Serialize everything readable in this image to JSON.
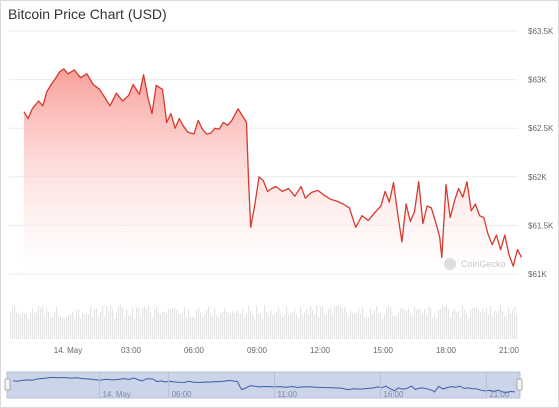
{
  "chart_data": {
    "type": "area",
    "title": "Bitcoin Price Chart (USD)",
    "xlabel": "",
    "ylabel": "",
    "ylim": [
      61000,
      63500
    ],
    "y_ticks": [
      {
        "value": 63500,
        "label": "$63.5K"
      },
      {
        "value": 63000,
        "label": "$63K"
      },
      {
        "value": 62500,
        "label": "$62.5K"
      },
      {
        "value": 62000,
        "label": "$62K"
      },
      {
        "value": 61500,
        "label": "$61.5K"
      },
      {
        "value": 61000,
        "label": "$61K"
      }
    ],
    "x_ticks": [
      {
        "hour": 0,
        "label": "14. May"
      },
      {
        "hour": 3,
        "label": "03:00"
      },
      {
        "hour": 6,
        "label": "06:00"
      },
      {
        "hour": 9,
        "label": "09:00"
      },
      {
        "hour": 12,
        "label": "12:00"
      },
      {
        "hour": 15,
        "label": "15:00"
      },
      {
        "hour": 18,
        "label": "18:00"
      },
      {
        "hour": 21,
        "label": "21:00"
      }
    ],
    "navigator_ticks": [
      {
        "hour": 0,
        "label": "14. May"
      },
      {
        "hour": 6,
        "label": "06:00"
      },
      {
        "hour": 11,
        "label": "11:00"
      },
      {
        "hour": 16,
        "label": "16:00"
      },
      {
        "hour": 21,
        "label": "21:00"
      }
    ],
    "grid": true,
    "legend": "none",
    "series": [
      {
        "values": [
          [
            -2.1,
            62670
          ],
          [
            -1.9,
            62600
          ],
          [
            -1.7,
            62700
          ],
          [
            -1.4,
            62780
          ],
          [
            -1.2,
            62730
          ],
          [
            -1.0,
            62880
          ],
          [
            -0.8,
            62950
          ],
          [
            -0.6,
            63010
          ],
          [
            -0.4,
            63080
          ],
          [
            -0.2,
            63110
          ],
          [
            0.0,
            63060
          ],
          [
            0.3,
            63100
          ],
          [
            0.6,
            63020
          ],
          [
            0.9,
            63060
          ],
          [
            1.2,
            62950
          ],
          [
            1.5,
            62900
          ],
          [
            1.8,
            62800
          ],
          [
            2.0,
            62730
          ],
          [
            2.3,
            62860
          ],
          [
            2.6,
            62780
          ],
          [
            2.9,
            62840
          ],
          [
            3.1,
            62950
          ],
          [
            3.4,
            62850
          ],
          [
            3.6,
            63050
          ],
          [
            3.8,
            62820
          ],
          [
            4.0,
            62650
          ],
          [
            4.2,
            62940
          ],
          [
            4.5,
            62900
          ],
          [
            4.7,
            62560
          ],
          [
            4.9,
            62650
          ],
          [
            5.1,
            62500
          ],
          [
            5.3,
            62600
          ],
          [
            5.5,
            62520
          ],
          [
            5.7,
            62460
          ],
          [
            6.0,
            62440
          ],
          [
            6.2,
            62580
          ],
          [
            6.4,
            62490
          ],
          [
            6.6,
            62440
          ],
          [
            6.8,
            62450
          ],
          [
            7.0,
            62500
          ],
          [
            7.2,
            62490
          ],
          [
            7.4,
            62560
          ],
          [
            7.6,
            62530
          ],
          [
            7.8,
            62580
          ],
          [
            8.1,
            62700
          ],
          [
            8.3,
            62630
          ],
          [
            8.5,
            62560
          ],
          [
            8.6,
            61950
          ],
          [
            8.7,
            61480
          ],
          [
            8.9,
            61720
          ],
          [
            9.1,
            62000
          ],
          [
            9.3,
            61960
          ],
          [
            9.5,
            61850
          ],
          [
            9.7,
            61880
          ],
          [
            9.9,
            61900
          ],
          [
            10.2,
            61850
          ],
          [
            10.5,
            61880
          ],
          [
            10.8,
            61800
          ],
          [
            11.1,
            61900
          ],
          [
            11.3,
            61780
          ],
          [
            11.6,
            61840
          ],
          [
            11.9,
            61860
          ],
          [
            12.2,
            61810
          ],
          [
            12.5,
            61770
          ],
          [
            12.8,
            61750
          ],
          [
            13.1,
            61720
          ],
          [
            13.4,
            61680
          ],
          [
            13.7,
            61480
          ],
          [
            14.0,
            61600
          ],
          [
            14.3,
            61550
          ],
          [
            14.6,
            61630
          ],
          [
            14.9,
            61700
          ],
          [
            15.1,
            61850
          ],
          [
            15.3,
            61740
          ],
          [
            15.5,
            61940
          ],
          [
            15.7,
            61620
          ],
          [
            15.9,
            61330
          ],
          [
            16.1,
            61720
          ],
          [
            16.3,
            61540
          ],
          [
            16.5,
            61640
          ],
          [
            16.7,
            61950
          ],
          [
            16.9,
            61520
          ],
          [
            17.1,
            61700
          ],
          [
            17.3,
            61680
          ],
          [
            17.5,
            61540
          ],
          [
            17.7,
            61380
          ],
          [
            17.8,
            61170
          ],
          [
            18.0,
            61920
          ],
          [
            18.2,
            61580
          ],
          [
            18.4,
            61750
          ],
          [
            18.6,
            61880
          ],
          [
            18.8,
            61790
          ],
          [
            19.0,
            61950
          ],
          [
            19.2,
            61650
          ],
          [
            19.4,
            61720
          ],
          [
            19.6,
            61600
          ],
          [
            19.8,
            61580
          ],
          [
            20.0,
            61410
          ],
          [
            20.2,
            61300
          ],
          [
            20.4,
            61400
          ],
          [
            20.6,
            61250
          ],
          [
            20.8,
            61400
          ],
          [
            21.0,
            61200
          ],
          [
            21.2,
            61080
          ],
          [
            21.4,
            61250
          ],
          [
            21.6,
            61170
          ]
        ]
      }
    ]
  },
  "watermark": "CoinGecko",
  "colors": {
    "line": "#d63a2e",
    "fill_top": "#f89a94",
    "fill_bottom": "#ffffff",
    "volume": "#e4e4e4",
    "navigator_fill": "#ccd4ea",
    "navigator_line": "#3a5fa6",
    "grid": "#ebebeb"
  }
}
